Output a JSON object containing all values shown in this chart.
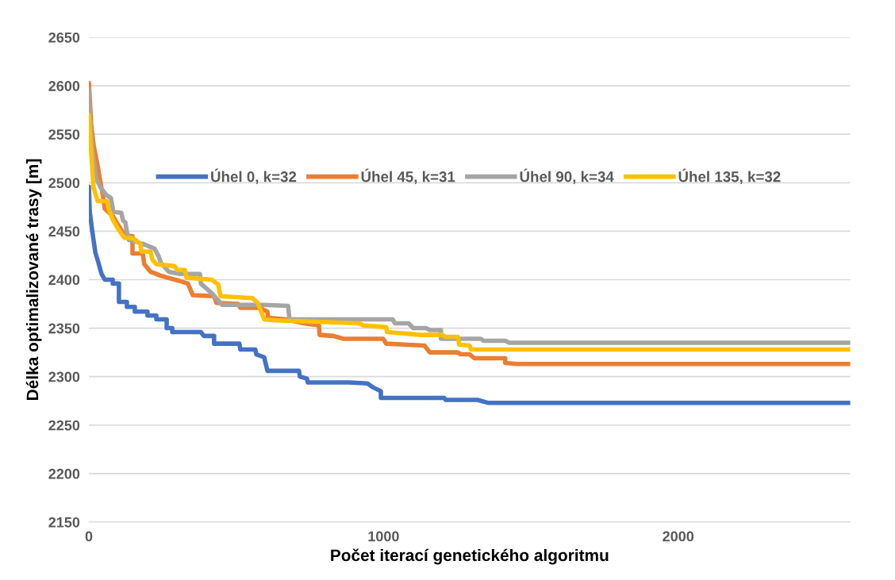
{
  "chart_data": {
    "type": "line",
    "xlabel": "Počet iterací genetického algoritmu",
    "ylabel": "Délka optimalizované trasy [m]",
    "xlim": [
      0,
      2584
    ],
    "xticks": [
      0,
      1000,
      2000
    ],
    "ylim": [
      2150,
      2650
    ],
    "yticks": [
      2150,
      2200,
      2250,
      2300,
      2350,
      2400,
      2450,
      2500,
      2550,
      2600,
      2650
    ],
    "grid": "y",
    "legend": "top",
    "marker": "none",
    "line_style": "solid",
    "series": [
      {
        "name": "Úhel 0, k=32",
        "color": "#4472c4",
        "x": [
          0,
          3,
          11,
          22,
          32,
          43,
          54,
          81,
          81,
          102,
          102,
          129,
          129,
          156,
          156,
          199,
          199,
          229,
          229,
          264,
          264,
          283,
          283,
          380,
          390,
          425,
          425,
          511,
          514,
          565,
          568,
          595,
          606,
          713,
          716,
          740,
          743,
          883,
          945,
          964,
          991,
          991,
          1206,
          1211,
          1319,
          1354,
          2584
        ],
        "values": [
          2496,
          2470,
          2451,
          2428,
          2418,
          2406,
          2400,
          2400,
          2396,
          2396,
          2377,
          2377,
          2372,
          2372,
          2367,
          2367,
          2363,
          2363,
          2359,
          2359,
          2350,
          2350,
          2346,
          2346,
          2342,
          2342,
          2334,
          2334,
          2328,
          2328,
          2323,
          2320,
          2306,
          2306,
          2300,
          2298,
          2294,
          2294,
          2293,
          2289,
          2285,
          2278,
          2278,
          2276,
          2276,
          2273,
          2273
        ]
      },
      {
        "name": "Úhel 45, k=31",
        "color": "#ed7d31",
        "x": [
          0,
          8,
          16,
          27,
          35,
          48,
          54,
          83,
          94,
          124,
          148,
          148,
          183,
          188,
          210,
          245,
          304,
          336,
          353,
          425,
          433,
          506,
          514,
          579,
          606,
          608,
          668,
          729,
          781,
          783,
          829,
          864,
          999,
          1009,
          1139,
          1157,
          1252,
          1262,
          1292,
          1308,
          1413,
          1413,
          1454,
          2584
        ],
        "values": [
          2603,
          2560,
          2539,
          2522,
          2508,
          2486,
          2473,
          2465,
          2459,
          2445,
          2445,
          2427,
          2427,
          2416,
          2408,
          2404,
          2399,
          2396,
          2384,
          2383,
          2376,
          2375,
          2371,
          2371,
          2367,
          2361,
          2359,
          2355,
          2353,
          2343,
          2342,
          2339,
          2339,
          2334,
          2332,
          2325,
          2325,
          2323,
          2323,
          2319,
          2319,
          2314,
          2313,
          2313
        ]
      },
      {
        "name": "Úhel 90, k=34",
        "color": "#a5a5a5",
        "x": [
          0,
          3,
          13,
          27,
          40,
          57,
          75,
          83,
          110,
          116,
          124,
          129,
          135,
          162,
          191,
          223,
          237,
          245,
          272,
          310,
          377,
          380,
          417,
          447,
          452,
          595,
          676,
          681,
          1031,
          1039,
          1085,
          1101,
          1144,
          1157,
          1195,
          1195,
          1330,
          1340,
          1413,
          1427,
          2584
        ],
        "values": [
          2596,
          2571,
          2531,
          2503,
          2495,
          2488,
          2484,
          2470,
          2469,
          2461,
          2459,
          2449,
          2441,
          2439,
          2436,
          2432,
          2424,
          2417,
          2408,
          2406,
          2406,
          2396,
          2386,
          2376,
          2374,
          2374,
          2373,
          2359,
          2359,
          2355,
          2355,
          2350,
          2350,
          2348,
          2348,
          2339,
          2339,
          2337,
          2337,
          2335,
          2335
        ]
      },
      {
        "name": "Úhel 135, k=32",
        "color": "#ffc000",
        "x": [
          0,
          8,
          16,
          30,
          62,
          67,
          81,
          102,
          121,
          148,
          175,
          178,
          210,
          215,
          229,
          291,
          299,
          326,
          331,
          417,
          439,
          447,
          555,
          573,
          595,
          633,
          918,
          931,
          1009,
          1012,
          1052,
          1128,
          1200,
          1211,
          1252,
          1257,
          1292,
          1297,
          2584
        ],
        "values": [
          2570,
          2531,
          2495,
          2481,
          2481,
          2473,
          2462,
          2451,
          2443,
          2443,
          2437,
          2429,
          2429,
          2421,
          2416,
          2414,
          2410,
          2410,
          2402,
          2400,
          2395,
          2383,
          2381,
          2376,
          2359,
          2358,
          2355,
          2353,
          2351,
          2346,
          2345,
          2343,
          2343,
          2341,
          2341,
          2333,
          2332,
          2328,
          2328
        ]
      }
    ]
  }
}
